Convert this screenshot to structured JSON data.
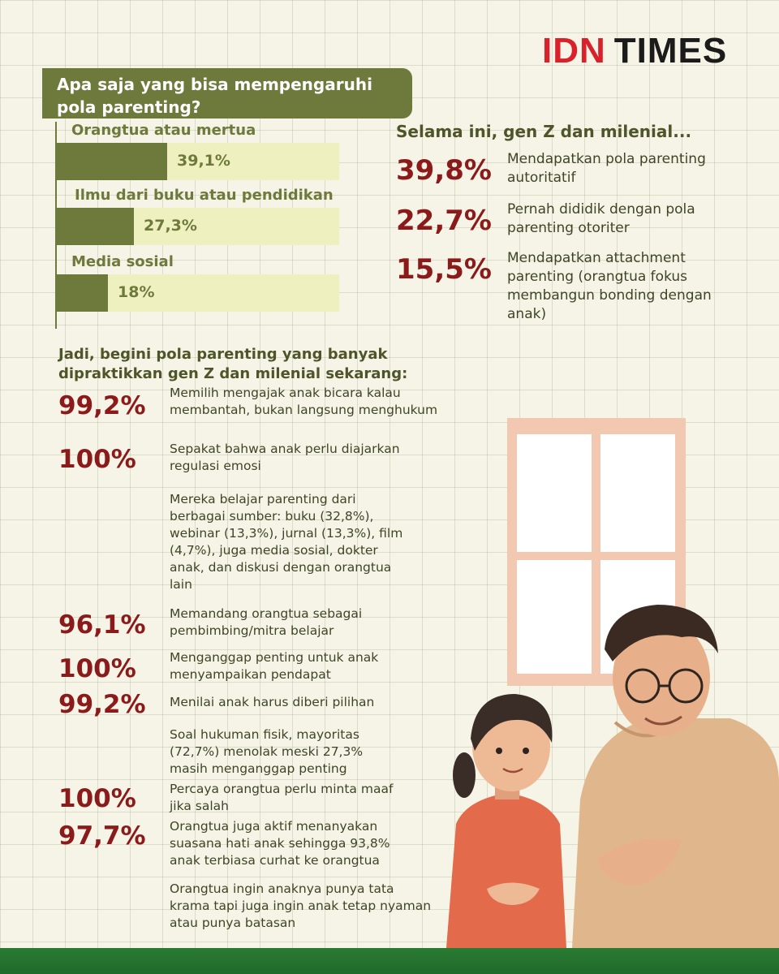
{
  "brand": {
    "part1": "IDN",
    "part2": "TIMES"
  },
  "question_title": "Apa saja yang bisa mempengaruhi pola parenting?",
  "chart_data": {
    "type": "bar",
    "title": "Apa saja yang bisa mempengaruhi pola parenting?",
    "categories": [
      "Orangtua atau mertua",
      "Ilmu dari buku atau pendidikan",
      "Media sosial"
    ],
    "values": [
      39.1,
      27.3,
      18
    ],
    "value_labels": [
      "39,1%",
      "27,3%",
      "18%"
    ],
    "unit": "%",
    "orientation": "horizontal",
    "xlim": [
      0,
      100
    ],
    "grid": false,
    "legend": "none"
  },
  "colors": {
    "olive": "#6e7a3c",
    "bar_track": "#eef1bf",
    "accent_red": "#8b1a1a",
    "background": "#f6f4e6",
    "footer_green": "#1f6b2a"
  },
  "right_section": {
    "title": "Selama ini, gen Z dan milenial...",
    "items": [
      {
        "percent": "39,8%",
        "text": "Mendapatkan pola parenting autoritatif"
      },
      {
        "percent": "22,7%",
        "text": "Pernah dididik dengan pola parenting otoriter"
      },
      {
        "percent": "15,5%",
        "text": "Mendapatkan attachment parenting (orangtua fokus membangun bonding dengan anak)"
      }
    ]
  },
  "practice_section": {
    "title": "Jadi, begini pola parenting yang banyak dipraktikkan gen Z dan milenial sekarang:",
    "items": [
      {
        "percent": "99,2%",
        "text": "Memilih mengajak anak bicara kalau membantah, bukan langsung menghukum"
      },
      {
        "percent": "100%",
        "text": "Sepakat bahwa anak perlu diajarkan regulasi emosi"
      },
      {
        "percent": "",
        "text": "Mereka belajar parenting dari berbagai sumber: buku (32,8%), webinar (13,3%), jurnal (13,3%), film (4,7%), juga media sosial, dokter anak, dan diskusi dengan orangtua lain"
      },
      {
        "percent": "96,1%",
        "text": "Memandang orangtua sebagai pembimbing/mitra belajar"
      },
      {
        "percent": "100%",
        "text": "Menganggap penting untuk anak menyampaikan pendapat"
      },
      {
        "percent": "99,2%",
        "text": "Menilai anak harus diberi pilihan"
      },
      {
        "percent": "",
        "text": "Soal hukuman fisik, mayoritas (72,7%) menolak meski 27,3% masih menganggap penting"
      },
      {
        "percent": "100%",
        "text": "Percaya orangtua perlu minta maaf jika salah"
      },
      {
        "percent": "97,7%",
        "text": "Orangtua juga aktif menanyakan suasana hati anak sehingga 93,8% anak terbiasa curhat ke orangtua"
      },
      {
        "percent": "",
        "text": "Orangtua ingin anaknya punya tata krama tapi juga ingin anak tetap nyaman atau punya batasan"
      }
    ]
  }
}
